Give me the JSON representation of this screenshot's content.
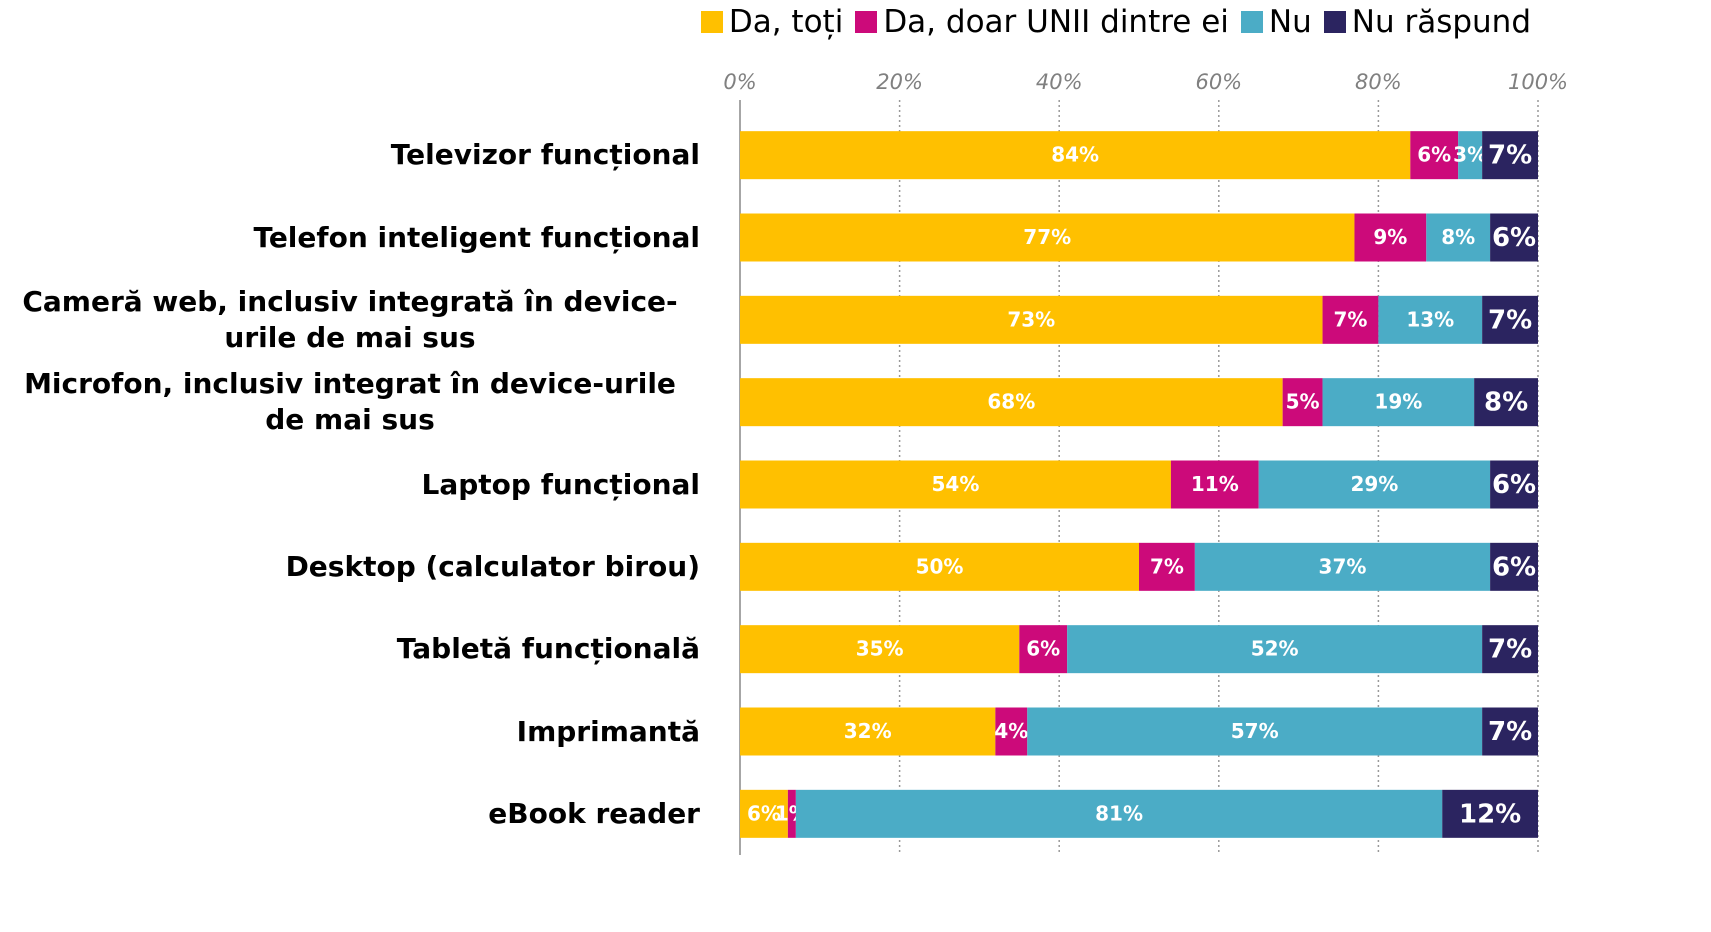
{
  "chart_data": {
    "type": "stacked_barh",
    "categories": [
      "Televizor funcțional",
      "Telefon inteligent funcțional",
      "Cameră web, inclusiv integrată în device-urile de mai sus",
      "Microfon, inclusiv integrat în device-urile de mai sus",
      "Laptop funcțional",
      "Desktop (calculator birou)",
      "Tabletă funcțională",
      "Imprimantă",
      "eBook reader"
    ],
    "series": [
      {
        "name": "Da, toți",
        "color": "#FFC000",
        "values": [
          84,
          77,
          73,
          68,
          54,
          50,
          35,
          32,
          6
        ],
        "value_labels": [
          "84%",
          "77%",
          "73%",
          "68%",
          "54%",
          "50%",
          "35%",
          "32%",
          "6%"
        ]
      },
      {
        "name": "Da, doar UNII dintre ei",
        "color": "#CC0A7A",
        "values": [
          6,
          9,
          7,
          5,
          11,
          7,
          6,
          4,
          1
        ],
        "value_labels": [
          "6%",
          "9%",
          "7%",
          "5%",
          "11%",
          "7%",
          "6%",
          "4%",
          "1%"
        ]
      },
      {
        "name": "Nu",
        "color": "#4BACC6",
        "values": [
          3,
          8,
          13,
          19,
          29,
          37,
          52,
          57,
          81
        ],
        "value_labels": [
          "3%",
          "8%",
          "13%",
          "19%",
          "29%",
          "37%",
          "52%",
          "57%",
          "81%"
        ]
      },
      {
        "name": "Nu răspund",
        "color": "#2B2460",
        "values": [
          7,
          6,
          7,
          8,
          6,
          6,
          7,
          7,
          12
        ],
        "value_labels": [
          "7%",
          "6%",
          "7%",
          "8%",
          "6%",
          "6%",
          "7%",
          "7%",
          "12%"
        ]
      }
    ],
    "xlim": [
      0,
      100
    ],
    "xticks": [
      {
        "value": 0,
        "label": "0%"
      },
      {
        "value": 20,
        "label": "20%"
      },
      {
        "value": 40,
        "label": "40%"
      },
      {
        "value": 60,
        "label": "60%"
      },
      {
        "value": 80,
        "label": "80%"
      },
      {
        "value": 100,
        "label": "100%"
      }
    ],
    "grid": true,
    "legend": "top-right"
  }
}
